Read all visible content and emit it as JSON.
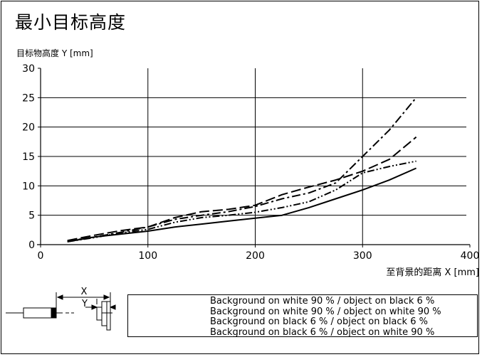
{
  "chart_data": {
    "type": "line",
    "title": "最小目标高度",
    "ylabel": "目标物高度 Y [mm]",
    "xlabel": "至背景的距离 X [mm]",
    "xlim": [
      0,
      400
    ],
    "ylim": [
      0,
      30
    ],
    "x_ticks": [
      0,
      100,
      200,
      300,
      400
    ],
    "y_ticks": [
      0,
      5,
      10,
      15,
      20,
      25,
      30
    ],
    "grid": true,
    "legend_position": "bottom",
    "series": [
      {
        "name": "Background on white 90 % / object on black 6 %",
        "dash": "dash-dot",
        "points": [
          [
            25,
            0.6
          ],
          [
            50,
            1.3
          ],
          [
            75,
            2.1
          ],
          [
            100,
            3.0
          ],
          [
            125,
            4.3
          ],
          [
            150,
            5.0
          ],
          [
            175,
            5.6
          ],
          [
            200,
            6.5
          ],
          [
            225,
            7.8
          ],
          [
            250,
            8.8
          ],
          [
            275,
            10.5
          ],
          [
            300,
            15.0
          ],
          [
            325,
            19.5
          ],
          [
            350,
            25.0
          ]
        ]
      },
      {
        "name": "Background on white 90 % / object on white 90 %",
        "dash": "long-dash",
        "points": [
          [
            25,
            0.7
          ],
          [
            50,
            1.6
          ],
          [
            75,
            2.4
          ],
          [
            100,
            3.0
          ],
          [
            125,
            4.6
          ],
          [
            150,
            5.6
          ],
          [
            175,
            6.0
          ],
          [
            200,
            6.7
          ],
          [
            225,
            8.5
          ],
          [
            250,
            9.8
          ],
          [
            275,
            11.0
          ],
          [
            300,
            12.5
          ],
          [
            325,
            14.5
          ],
          [
            350,
            18.3
          ]
        ]
      },
      {
        "name": "Background on black 6 % / object on black 6 %",
        "dash": "dash-dot-dot",
        "points": [
          [
            25,
            0.5
          ],
          [
            50,
            1.2
          ],
          [
            75,
            2.0
          ],
          [
            100,
            2.6
          ],
          [
            125,
            3.8
          ],
          [
            150,
            4.6
          ],
          [
            175,
            5.0
          ],
          [
            200,
            5.5
          ],
          [
            225,
            6.3
          ],
          [
            250,
            7.3
          ],
          [
            275,
            9.3
          ],
          [
            300,
            12.2
          ],
          [
            325,
            13.3
          ],
          [
            350,
            14.2
          ]
        ]
      },
      {
        "name": "Background on black 6 % / object on white 90 %",
        "dash": "solid",
        "points": [
          [
            25,
            0.5
          ],
          [
            50,
            1.3
          ],
          [
            75,
            1.8
          ],
          [
            100,
            2.3
          ],
          [
            125,
            3.0
          ],
          [
            150,
            3.5
          ],
          [
            175,
            4.0
          ],
          [
            200,
            4.5
          ],
          [
            225,
            5.0
          ],
          [
            250,
            6.3
          ],
          [
            275,
            7.8
          ],
          [
            300,
            9.3
          ],
          [
            325,
            11.0
          ],
          [
            350,
            13.0
          ]
        ]
      }
    ]
  },
  "diagram": {
    "x_label": "X",
    "y_label": "Y"
  }
}
